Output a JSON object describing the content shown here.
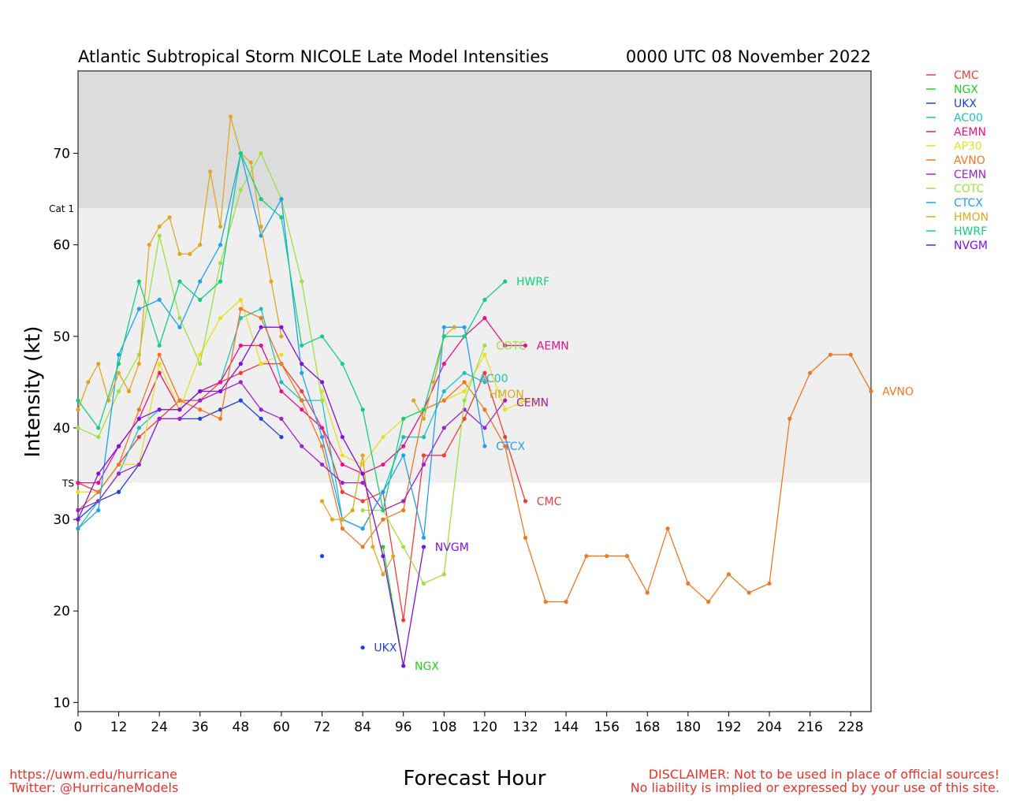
{
  "title_left": "Atlantic Subtropical Storm NICOLE Late Model Intensities",
  "title_right": "0000 UTC 08 November 2022",
  "footer": {
    "left_line1": "https://uwm.edu/hurricane",
    "left_line2": "Twitter: @HurricaneModels",
    "right_line1": "DISCLAIMER: Not to be used in place of official sources!",
    "right_line2": "No liability is implied or expressed by your use of this site."
  },
  "chart_data": {
    "type": "line",
    "title": "Atlantic Subtropical Storm NICOLE Late Model Intensities",
    "xlabel": "Forecast Hour",
    "ylabel": "Intensity (kt)",
    "xlim": [
      0,
      234
    ],
    "ylim": [
      9,
      79
    ],
    "xticks": [
      0,
      12,
      24,
      36,
      48,
      60,
      72,
      84,
      96,
      108,
      120,
      132,
      144,
      156,
      168,
      180,
      192,
      204,
      216,
      228
    ],
    "yticks": [
      10,
      20,
      30,
      40,
      50,
      60,
      70
    ],
    "bands": [
      {
        "label": "TS",
        "from": 34,
        "to": 64,
        "color": "#efefef"
      },
      {
        "label": "Cat 1",
        "from": 64,
        "to": 79,
        "color": "#dcdcdc"
      }
    ],
    "legend_position": "right, outside plot",
    "series": [
      {
        "name": "CMC",
        "color": "#f03c3c",
        "label": "CMC",
        "x": [
          0,
          6,
          12,
          18,
          24,
          30,
          36,
          42,
          48,
          54,
          60,
          66,
          72,
          78,
          84,
          90,
          96,
          102,
          108,
          114,
          120,
          126,
          132
        ],
        "y": [
          34,
          33,
          36,
          39,
          41,
          43,
          43,
          45,
          46,
          47,
          47,
          44,
          40,
          33,
          32,
          33,
          19,
          37,
          37,
          41,
          46,
          39,
          32
        ]
      },
      {
        "name": "NGX",
        "color": "#20d020",
        "label": "NGX",
        "x": [
          90,
          96,
          102
        ],
        "y": [
          27,
          14,
          null
        ]
      },
      {
        "name": "UKX",
        "color": "#2040e0",
        "label": "UKX",
        "x": [
          0,
          6,
          12,
          18,
          24,
          30,
          36,
          42,
          48,
          54,
          60,
          66,
          72,
          78,
          84
        ],
        "y": [
          30,
          32,
          33,
          36,
          41,
          41,
          41,
          42,
          43,
          41,
          39,
          null,
          26,
          null,
          16
        ]
      },
      {
        "name": "AC00",
        "color": "#20c0c0",
        "label": "AC00",
        "x": [
          0,
          6,
          12,
          18,
          24,
          30,
          36,
          42,
          48,
          54,
          60,
          66,
          72,
          78,
          84,
          90,
          96,
          102,
          108,
          114,
          120
        ],
        "y": [
          29,
          32,
          35,
          40,
          42,
          42,
          44,
          45,
          52,
          53,
          45,
          43,
          43,
          30,
          29,
          33,
          39,
          39,
          44,
          46,
          45
        ]
      },
      {
        "name": "AEMN",
        "color": "#e8108c",
        "label": "AEMN",
        "x": [
          0,
          6,
          12,
          18,
          24,
          30,
          36,
          42,
          48,
          54,
          60,
          66,
          72,
          78,
          84,
          90,
          96,
          102,
          108,
          114,
          120,
          126,
          132
        ],
        "y": [
          34,
          34,
          38,
          41,
          46,
          42,
          44,
          45,
          49,
          49,
          44,
          42,
          40,
          36,
          35,
          36,
          38,
          42,
          47,
          50,
          52,
          49,
          49
        ]
      },
      {
        "name": "AP30",
        "color": "#e8e020",
        "label": "AP30",
        "x": [
          0,
          6,
          12,
          18,
          24,
          30,
          36,
          42,
          48,
          54,
          60,
          66,
          72,
          78,
          84,
          90,
          96,
          102,
          108,
          114,
          120,
          126,
          132
        ],
        "y": [
          33,
          33,
          36,
          36,
          47,
          42,
          48,
          52,
          54,
          47,
          48,
          null,
          44,
          37,
          36,
          39,
          41,
          42,
          43,
          44,
          48,
          42,
          43
        ]
      },
      {
        "name": "AVNO",
        "color": "#f07820",
        "label": "AVNO",
        "x": [
          0,
          6,
          12,
          18,
          24,
          30,
          36,
          42,
          48,
          54,
          60,
          66,
          72,
          78,
          84,
          90,
          96,
          102,
          108,
          114,
          120,
          126,
          132,
          138,
          144,
          150,
          156,
          162,
          168,
          174,
          180,
          186,
          192,
          198,
          204,
          210,
          216,
          222,
          228,
          234
        ],
        "y": [
          31,
          33,
          36,
          42,
          48,
          43,
          42,
          41,
          53,
          52,
          47,
          43,
          38,
          29,
          27,
          30,
          31,
          42,
          43,
          45,
          42,
          38,
          28,
          21,
          21,
          26,
          26,
          26,
          22,
          29,
          23,
          21,
          24,
          22,
          23,
          41,
          46,
          48,
          48,
          44
        ]
      },
      {
        "name": "CEMN",
        "color": "#a020d0",
        "label": "CEMN",
        "x": [
          0,
          6,
          12,
          18,
          24,
          30,
          36,
          42,
          48,
          54,
          60,
          66,
          72,
          78,
          84,
          90,
          96,
          102,
          108,
          114,
          120,
          126
        ],
        "y": [
          31,
          32,
          35,
          36,
          41,
          41,
          43,
          44,
          45,
          42,
          41,
          38,
          36,
          34,
          34,
          31,
          32,
          36,
          40,
          42,
          40,
          43
        ]
      },
      {
        "name": "COTC",
        "color": "#a0e040",
        "label": "COTC",
        "x": [
          0,
          6,
          12,
          18,
          24,
          30,
          36,
          42,
          48,
          54,
          60,
          66,
          72,
          78,
          84,
          90,
          96,
          102,
          108,
          114,
          120
        ],
        "y": [
          40,
          39,
          44,
          48,
          61,
          52,
          47,
          58,
          66,
          70,
          65,
          56,
          43,
          null,
          31,
          31,
          27,
          23,
          24,
          43,
          49
        ]
      },
      {
        "name": "CTCX",
        "color": "#20a0f0",
        "label": "CTCX",
        "x": [
          0,
          6,
          12,
          18,
          24,
          30,
          36,
          42,
          48,
          54,
          60,
          66,
          72,
          78,
          84,
          90,
          96,
          102,
          108,
          114,
          120
        ],
        "y": [
          29,
          31,
          48,
          53,
          54,
          51,
          56,
          60,
          70,
          61,
          65,
          46,
          39,
          30,
          29,
          33,
          37,
          28,
          51,
          51,
          38
        ]
      },
      {
        "name": "HMON",
        "color": "#e0a820",
        "label": "HMON",
        "x": [
          0,
          3,
          6,
          9,
          12,
          15,
          18,
          21,
          24,
          27,
          30,
          33,
          36,
          39,
          42,
          45,
          48,
          51,
          54,
          57,
          60,
          63,
          66,
          69,
          72,
          75,
          78,
          81,
          84,
          87,
          90,
          93,
          96,
          99,
          102,
          105,
          108,
          111,
          114,
          117,
          120
        ],
        "y": [
          42,
          45,
          47,
          43,
          46,
          44,
          47,
          60,
          62,
          63,
          59,
          59,
          60,
          68,
          62,
          74,
          70,
          69,
          62,
          56,
          50,
          null,
          null,
          null,
          32,
          30,
          30,
          31,
          37,
          27,
          24,
          26,
          null,
          43,
          41,
          45,
          50,
          51,
          null,
          null,
          null
        ]
      },
      {
        "name": "HWRF",
        "color": "#10d080",
        "label": "HWRF",
        "x": [
          0,
          6,
          12,
          18,
          24,
          30,
          36,
          42,
          48,
          54,
          60,
          66,
          72,
          78,
          84,
          90,
          96,
          102,
          108,
          114,
          120,
          126
        ],
        "y": [
          43,
          40,
          47,
          56,
          49,
          56,
          54,
          56,
          70,
          65,
          63,
          49,
          50,
          47,
          42,
          31,
          41,
          42,
          50,
          50,
          54,
          56
        ]
      },
      {
        "name": "NVGM",
        "color": "#8010e0",
        "label": "NVGM",
        "x": [
          0,
          6,
          12,
          18,
          24,
          30,
          36,
          42,
          48,
          54,
          60,
          66,
          72,
          78,
          84,
          90,
          96,
          102
        ],
        "y": [
          30,
          35,
          38,
          41,
          42,
          42,
          44,
          44,
          47,
          51,
          51,
          47,
          45,
          39,
          35,
          26,
          14,
          27
        ]
      }
    ],
    "end_labels": [
      {
        "text": "HWRF",
        "x": 127,
        "y": 56,
        "color": "#10d080"
      },
      {
        "text": "AEMN",
        "x": 133,
        "y": 49,
        "color": "#e8108c"
      },
      {
        "text": "COTC",
        "x": 121,
        "y": 49,
        "color": "#a0e040"
      },
      {
        "text": "AC00",
        "x": 116,
        "y": 45.4,
        "color": "#20c0c0"
      },
      {
        "text": "HMON",
        "x": 119,
        "y": 43.7,
        "color": "#e0a820"
      },
      {
        "text": "AP30",
        "x": 127,
        "y": 42.8,
        "color": "#e8e020"
      },
      {
        "text": "CEMN",
        "x": 127,
        "y": 42.8,
        "color": "#a020d0"
      },
      {
        "text": "CTCX",
        "x": 121,
        "y": 38,
        "color": "#20a0f0"
      },
      {
        "text": "CMC",
        "x": 133,
        "y": 32,
        "color": "#f03c3c"
      },
      {
        "text": "NVGM",
        "x": 103,
        "y": 27,
        "color": "#8010e0"
      },
      {
        "text": "UKX",
        "x": 85,
        "y": 16,
        "color": "#2040e0"
      },
      {
        "text": "NGX",
        "x": 97,
        "y": 14,
        "color": "#20d020"
      },
      {
        "text": "AVNO",
        "x": 235,
        "y": 44,
        "color": "#f07820"
      }
    ]
  }
}
